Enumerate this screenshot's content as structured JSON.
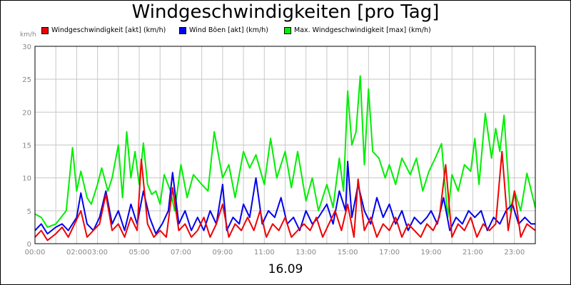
{
  "chart_data": {
    "type": "line",
    "title": "Windgeschwindigkeiten [pro Tag]",
    "ylabel": "km/h",
    "xlabel": "16.09",
    "ylim": [
      0,
      30
    ],
    "yticks": [
      0,
      5,
      10,
      15,
      20,
      25,
      30
    ],
    "xlim": [
      0,
      24
    ],
    "xticks": [
      {
        "at": 0,
        "label": "00:00"
      },
      {
        "at": 2,
        "label": "02:00"
      },
      {
        "at": 3,
        "label": "03:00"
      },
      {
        "at": 5,
        "label": "05:00"
      },
      {
        "at": 7,
        "label": "07:00"
      },
      {
        "at": 9,
        "label": "09:00"
      },
      {
        "at": 11,
        "label": "11:00"
      },
      {
        "at": 13,
        "label": "13:00"
      },
      {
        "at": 15,
        "label": "15:00"
      },
      {
        "at": 17,
        "label": "17:00"
      },
      {
        "at": 19,
        "label": "19:00"
      },
      {
        "at": 21,
        "label": "21:00"
      },
      {
        "at": 23,
        "label": "23:00"
      }
    ],
    "grid": true,
    "legend_position": "top",
    "series": [
      {
        "name": "Max. Windgeschwindigkeit [max] (km/h)",
        "color": "#00ee00",
        "x": [
          0,
          0.3,
          0.6,
          1,
          1.3,
          1.5,
          1.8,
          2,
          2.2,
          2.5,
          2.7,
          3,
          3.2,
          3.5,
          3.7,
          4,
          4.2,
          4.4,
          4.6,
          4.8,
          5,
          5.2,
          5.4,
          5.6,
          5.8,
          6,
          6.2,
          6.5,
          6.7,
          7,
          7.3,
          7.6,
          8,
          8.3,
          8.6,
          9,
          9.3,
          9.6,
          10,
          10.3,
          10.6,
          11,
          11.3,
          11.6,
          12,
          12.3,
          12.6,
          13,
          13.3,
          13.6,
          14,
          14.3,
          14.6,
          14.8,
          15,
          15.2,
          15.4,
          15.6,
          15.8,
          16,
          16.2,
          16.5,
          16.8,
          17,
          17.3,
          17.6,
          18,
          18.3,
          18.6,
          18.9,
          19.2,
          19.5,
          19.8,
          20,
          20.3,
          20.6,
          20.9,
          21.1,
          21.3,
          21.6,
          21.9,
          22.1,
          22.3,
          22.5,
          22.8,
          23,
          23.3,
          23.6,
          24
        ],
        "values": [
          4.5,
          4,
          2.5,
          3,
          4.2,
          5,
          14.6,
          8,
          11,
          7,
          6,
          9,
          11.5,
          8,
          10,
          15,
          7,
          17,
          10,
          14,
          9,
          15.3,
          9,
          7.5,
          8,
          6,
          10.5,
          8,
          5,
          12,
          7,
          10.5,
          9,
          8,
          17,
          10,
          12,
          7,
          14,
          11.5,
          13.5,
          9,
          16,
          10,
          14,
          8.5,
          14,
          6.5,
          10,
          5,
          9,
          5.5,
          13,
          8,
          23.2,
          15,
          17,
          25.5,
          12,
          23.5,
          14,
          13,
          10,
          12,
          9,
          13,
          10.5,
          13,
          8,
          11,
          13,
          15.2,
          4,
          10.5,
          8,
          12,
          11,
          16,
          9,
          19.8,
          13,
          17.5,
          14,
          19.5,
          5,
          8,
          5,
          10.7,
          5.5
        ]
      },
      {
        "name": "Wind Böen [akt] (km/h)",
        "color": "#0000ee",
        "x": [
          0,
          0.3,
          0.6,
          1,
          1.3,
          1.6,
          2,
          2.2,
          2.5,
          2.8,
          3.1,
          3.4,
          3.7,
          4,
          4.3,
          4.6,
          4.9,
          5.2,
          5.5,
          5.8,
          6.1,
          6.4,
          6.6,
          6.9,
          7.2,
          7.5,
          7.8,
          8.1,
          8.4,
          8.7,
          9,
          9.2,
          9.5,
          9.8,
          10,
          10.3,
          10.6,
          10.9,
          11.2,
          11.5,
          11.8,
          12.1,
          12.4,
          12.7,
          13,
          13.3,
          13.6,
          14,
          14.3,
          14.6,
          14.9,
          15,
          15.2,
          15.5,
          15.8,
          16.1,
          16.4,
          16.7,
          17,
          17.3,
          17.6,
          17.9,
          18.2,
          18.5,
          18.8,
          19,
          19.3,
          19.6,
          19.9,
          20.2,
          20.5,
          20.8,
          21.1,
          21.4,
          21.7,
          22,
          22.3,
          22.6,
          22.9,
          23.2,
          23.5,
          23.8,
          24
        ],
        "values": [
          2,
          3,
          1.5,
          2.5,
          3,
          2,
          4,
          7.7,
          3,
          2,
          4,
          8,
          3,
          5,
          2,
          6,
          3,
          8,
          4,
          1.5,
          3,
          5,
          10.8,
          3,
          5,
          2,
          4,
          2,
          5,
          3,
          9,
          2,
          4,
          3,
          6,
          4,
          10,
          3,
          5,
          4,
          7,
          3,
          4,
          2,
          5,
          3,
          4,
          6,
          3,
          8,
          5,
          12.5,
          4,
          9,
          5,
          3,
          7,
          4,
          6,
          3,
          5,
          2,
          4,
          3,
          4,
          5,
          3,
          7,
          2,
          4,
          3,
          5,
          4,
          5,
          2,
          4,
          3,
          5,
          6,
          3,
          4,
          3,
          3
        ]
      },
      {
        "name": "Windgeschwindigkeit [akt] (km/h)",
        "color": "#ee0000",
        "x": [
          0,
          0.3,
          0.6,
          1,
          1.3,
          1.6,
          1.9,
          2.2,
          2.5,
          2.8,
          3.1,
          3.4,
          3.7,
          4,
          4.3,
          4.6,
          4.9,
          5.1,
          5.4,
          5.7,
          6,
          6.3,
          6.6,
          6.9,
          7.2,
          7.5,
          7.8,
          8.1,
          8.4,
          8.7,
          9,
          9.3,
          9.6,
          9.9,
          10.2,
          10.5,
          10.8,
          11.1,
          11.4,
          11.7,
          12,
          12.3,
          12.6,
          12.9,
          13.2,
          13.5,
          13.8,
          14.1,
          14.4,
          14.7,
          15,
          15.3,
          15.5,
          15.8,
          16.1,
          16.4,
          16.7,
          17,
          17.3,
          17.6,
          17.9,
          18.2,
          18.5,
          18.8,
          19.1,
          19.4,
          19.7,
          20,
          20.3,
          20.6,
          20.9,
          21.2,
          21.5,
          21.8,
          22.1,
          22.4,
          22.7,
          23,
          23.3,
          23.6,
          24
        ],
        "values": [
          1,
          2,
          0.5,
          1.5,
          2.5,
          1,
          3,
          5,
          1,
          2,
          3,
          7.5,
          2,
          3,
          1,
          4,
          2,
          12.8,
          3,
          1,
          2,
          1,
          8.5,
          2,
          3,
          1,
          2,
          4,
          1,
          3,
          6,
          1,
          3,
          2,
          4,
          2,
          5,
          1,
          3,
          2,
          4,
          1,
          2,
          3,
          2,
          4,
          1,
          3,
          5,
          2,
          6,
          1,
          9.8,
          2,
          4,
          1,
          3,
          2,
          4,
          1,
          3,
          2,
          1,
          3,
          2,
          4,
          12,
          1,
          3,
          2,
          4,
          1,
          3,
          2,
          3,
          14,
          2,
          8,
          1,
          3,
          2
        ]
      }
    ],
    "legend": [
      {
        "label": "Windgeschwindigkeit [akt] (km/h)",
        "color": "#ee0000"
      },
      {
        "label": "Wind Böen [akt] (km/h)",
        "color": "#0000ee"
      },
      {
        "label": "Max. Windgeschwindigkeit [max] (km/h)",
        "color": "#00ee00"
      }
    ]
  }
}
